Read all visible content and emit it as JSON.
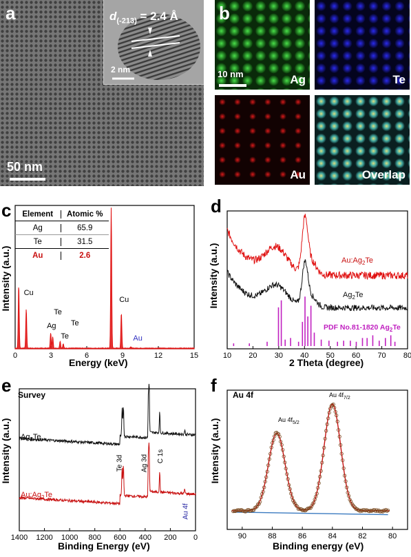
{
  "panels": {
    "a": {
      "label": "a",
      "scalebar": "50 nm",
      "inset_scalebar": "2 nm",
      "d_spacing_prefix": "d",
      "d_spacing_sub": "(-213)",
      "d_spacing_value": " = 2.4 Å"
    },
    "b": {
      "label": "b",
      "scalebar": "10 nm",
      "maps": [
        {
          "name": "Ag",
          "color": "#1fb51f"
        },
        {
          "name": "Te",
          "color": "#1010c8"
        },
        {
          "name": "Au",
          "color": "#c81010"
        },
        {
          "name": "Overlap",
          "color": "#50a0a0"
        }
      ]
    },
    "c": {
      "label": "c"
    },
    "d": {
      "label": "d"
    },
    "e": {
      "label": "e"
    },
    "f": {
      "label": "f"
    }
  },
  "table_c": {
    "headers": [
      "Element",
      "Atomic %"
    ],
    "rows": [
      [
        "Ag",
        "65.9"
      ],
      [
        "Te",
        "31.5"
      ],
      [
        "Au",
        "2.6"
      ]
    ]
  },
  "chart_data": [
    {
      "type": "line",
      "panel": "c",
      "xlabel": "Energy (keV)",
      "ylabel": "Intensity (a.u.)",
      "xlim": [
        0,
        15
      ],
      "xticks": [
        0,
        3,
        6,
        9,
        12,
        15
      ],
      "series_color": "#e01010",
      "peaks": [
        {
          "x": 0.3,
          "h": 0.45
        },
        {
          "x": 0.93,
          "h": 0.28,
          "label": "Cu"
        },
        {
          "x": 2.98,
          "h": 0.11,
          "label": "Ag"
        },
        {
          "x": 3.15,
          "h": 0.08
        },
        {
          "x": 3.77,
          "h": 0.05,
          "label": "Te"
        },
        {
          "x": 4.03,
          "h": 0.03
        },
        {
          "x": 8.05,
          "h": 1.0,
          "label": "Cu"
        },
        {
          "x": 8.9,
          "h": 0.25
        },
        {
          "x": 9.7,
          "h": 0.01,
          "label": "Au"
        }
      ],
      "annotations": [
        "Cu",
        "Te",
        "Ag",
        "Te",
        "Te",
        "Cu",
        "Au"
      ]
    },
    {
      "type": "line",
      "panel": "d",
      "xlabel": "2 Theta (degree)",
      "ylabel": "Intensity (a.u.)",
      "xlim": [
        10,
        80
      ],
      "xticks": [
        10,
        20,
        30,
        40,
        50,
        60,
        70,
        80
      ],
      "series": [
        {
          "name": "Au:Ag2Te",
          "color": "#e01010"
        },
        {
          "name": "Ag2Te",
          "color": "#111111"
        }
      ],
      "reference": {
        "name": "PDF No.81-1820 Ag2Te",
        "color": "#c020c0",
        "x": [
          12.5,
          18.6,
          25.5,
          29.9,
          31.0,
          32.5,
          34.6,
          37.7,
          39.2,
          40.2,
          41.3,
          42.5,
          43.8,
          46.5,
          49.5,
          52.8,
          55.2,
          57.8,
          60.1,
          62.5,
          64.3,
          66.5,
          69.0,
          71.4,
          73.5,
          75.1
        ],
        "h": [
          0.05,
          0.05,
          0.08,
          0.72,
          0.85,
          0.12,
          0.15,
          0.08,
          0.45,
          0.92,
          0.55,
          0.75,
          0.25,
          0.12,
          0.1,
          0.08,
          0.1,
          0.1,
          0.08,
          0.15,
          0.15,
          0.2,
          0.1,
          0.15,
          0.2,
          0.08
        ]
      }
    },
    {
      "type": "line",
      "panel": "e",
      "title": "Survey",
      "xlabel": "Binding Energy (eV)",
      "ylabel": "Intensity (a.u.)",
      "xlim": [
        1400,
        0
      ],
      "xticks": [
        1400,
        1200,
        1000,
        800,
        600,
        400,
        200,
        0
      ],
      "series": [
        {
          "name": "Ag2Te",
          "color": "#111111"
        },
        {
          "name": "Au:Ag2Te",
          "color": "#c81010"
        }
      ],
      "annotations": [
        "Te 3d",
        "Ag 3d",
        "C 1s",
        "Au 4f"
      ]
    },
    {
      "type": "line",
      "panel": "f",
      "title": "Au 4f",
      "xlabel": "Binding energy (eV)",
      "ylabel": "Intensity (a.u.)",
      "xlim": [
        91,
        79
      ],
      "xticks": [
        90,
        88,
        86,
        84,
        82,
        80
      ],
      "peaks": [
        {
          "center": 87.7,
          "label": "Au 4f5/2"
        },
        {
          "center": 84.0,
          "label": "Au 4f7/2"
        }
      ],
      "fit_color": "#c81010",
      "baseline_color": "#3a7ac0",
      "point_color": "#7a4a20"
    }
  ],
  "labels": {
    "c_annot": {
      "cu1": "Cu",
      "te1": "Te",
      "ag": "Ag",
      "te2": "Te",
      "te3": "Te",
      "cu2": "Cu",
      "au": "Au"
    },
    "d_series": {
      "au_prefix": "Au:Ag",
      "au_sub": "2",
      "au_suffix": "Te",
      "ag_prefix": "Ag",
      "ag_sub": "2",
      "ag_suffix": "Te",
      "pdf_text": "PDF No.81-1820 Ag",
      "pdf_sub": "2",
      "pdf_suffix": "Te"
    },
    "e_series": {
      "ag_prefix": "Ag",
      "ag_sub": "2",
      "ag_suffix": "Te",
      "au": "Au:Ag",
      "au_sub": "2",
      "au_suffix": "Te"
    },
    "e_annot": {
      "te3d": "Te 3d",
      "ag3d": "Ag 3d",
      "c1s": "C 1s",
      "au4f": "Au 4f"
    },
    "f_annot": {
      "p1": "Au 4f",
      "p1_sub": "5/2",
      "p2": "Au 4f",
      "p2_sub": "7/2"
    }
  }
}
